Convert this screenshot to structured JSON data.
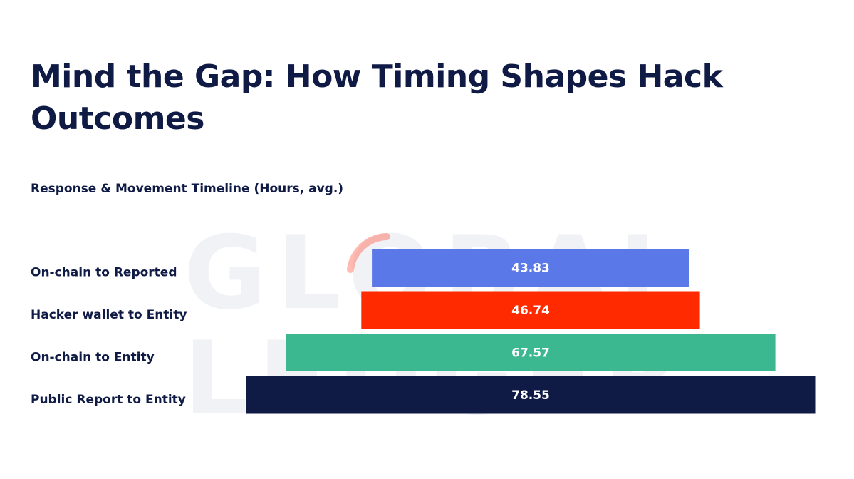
{
  "title": "Mind the Gap: How Timing Shapes Hack Outcomes",
  "subtitle": "Response & Movement Timeline (Hours, avg.)",
  "watermark": {
    "line1": "GLOBAL",
    "line2": "LEDGER",
    "accent_color": "#ff3b1f"
  },
  "chart_data": {
    "type": "bar",
    "orientation": "horizontal",
    "alignment": "centered",
    "categories": [
      "On-chain to Reported",
      "Hacker wallet to Entity",
      "On-chain to Entity",
      "Public Report to Entity"
    ],
    "values": [
      43.83,
      46.74,
      67.57,
      78.55
    ],
    "value_labels": [
      "43.83",
      "46.74",
      "67.57",
      "78.55"
    ],
    "colors": [
      "#5b78e8",
      "#ff2a00",
      "#3cb890",
      "#0f1a45"
    ],
    "title": "Response & Movement Timeline (Hours, avg.)",
    "xlabel": "",
    "ylabel": "",
    "grid": false,
    "legend": "none"
  }
}
